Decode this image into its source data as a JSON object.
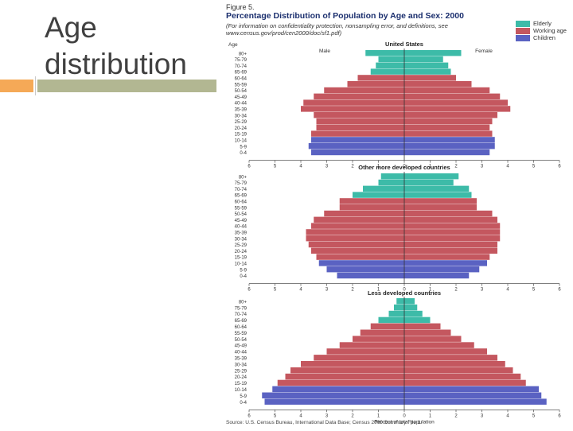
{
  "slide": {
    "title_line1": "Age",
    "title_line2": "distribution"
  },
  "figure": {
    "label": "Figure 5.",
    "title": "Percentage Distribution of Population by Age and Sex: 2000",
    "note": "(For information on confidentiality protection, nonsampling error, and definitions, see",
    "url": "www.census.gov/prod/cen2000/doc/sf1.pdf)",
    "source": "Source: U.S. Census Bureau, International Data Base; Census 2000 Summary File 1.",
    "x_label": "Percent of total population"
  },
  "colors": {
    "elderly": "#3dbba8",
    "working": "#c4575f",
    "children": "#5a62c2",
    "title": "#1b2f6e"
  },
  "chart_data": [
    {
      "type": "bar",
      "title": "United States",
      "ylabel": "Age",
      "left_label": "Male",
      "right_label": "Female",
      "xlim": [
        -6,
        6
      ],
      "xticks": [
        "6",
        "5",
        "4",
        "3",
        "2",
        "1",
        "0",
        "1",
        "2",
        "3",
        "4",
        "5",
        "6"
      ],
      "legend": [
        {
          "name": "Elderly",
          "group": "elderly"
        },
        {
          "name": "Working age",
          "group": "working"
        },
        {
          "name": "Children",
          "group": "children"
        }
      ],
      "categories": [
        "80+",
        "75-79",
        "70-74",
        "65-69",
        "60-64",
        "55-59",
        "50-54",
        "45-49",
        "40-44",
        "35-39",
        "30-34",
        "25-29",
        "20-24",
        "15-19",
        "10-14",
        "5-9",
        "0-4"
      ],
      "groups": [
        "elderly",
        "elderly",
        "elderly",
        "elderly",
        "working",
        "working",
        "working",
        "working",
        "working",
        "working",
        "working",
        "working",
        "working",
        "working",
        "children",
        "children",
        "children"
      ],
      "series": [
        {
          "name": "Male",
          "values": [
            1.5,
            1.0,
            1.1,
            1.3,
            1.8,
            2.2,
            3.1,
            3.5,
            3.9,
            4.0,
            3.5,
            3.4,
            3.4,
            3.6,
            3.6,
            3.7,
            3.6
          ]
        },
        {
          "name": "Female",
          "values": [
            2.2,
            1.5,
            1.7,
            1.8,
            2.0,
            2.6,
            3.3,
            3.7,
            4.0,
            4.1,
            3.6,
            3.4,
            3.3,
            3.4,
            3.5,
            3.5,
            3.3
          ]
        }
      ]
    },
    {
      "type": "bar",
      "title": "Other more developed countries",
      "xlim": [
        -6,
        6
      ],
      "xticks": [
        "6",
        "5",
        "4",
        "3",
        "2",
        "1",
        "0",
        "1",
        "2",
        "3",
        "4",
        "5",
        "6"
      ],
      "categories": [
        "80+",
        "75-79",
        "70-74",
        "65-69",
        "60-64",
        "55-59",
        "50-54",
        "45-49",
        "40-44",
        "35-39",
        "30-34",
        "25-29",
        "20-24",
        "15-19",
        "10-14",
        "5-9",
        "0-4"
      ],
      "groups": [
        "elderly",
        "elderly",
        "elderly",
        "elderly",
        "working",
        "working",
        "working",
        "working",
        "working",
        "working",
        "working",
        "working",
        "working",
        "working",
        "children",
        "children",
        "children"
      ],
      "series": [
        {
          "name": "Male",
          "values": [
            0.9,
            1.0,
            1.6,
            2.0,
            2.5,
            2.5,
            3.1,
            3.5,
            3.6,
            3.8,
            3.8,
            3.7,
            3.6,
            3.4,
            3.3,
            3.0,
            2.6
          ]
        },
        {
          "name": "Female",
          "values": [
            2.1,
            1.9,
            2.5,
            2.6,
            2.8,
            2.8,
            3.4,
            3.6,
            3.7,
            3.7,
            3.7,
            3.6,
            3.6,
            3.3,
            3.2,
            2.9,
            2.5
          ]
        }
      ]
    },
    {
      "type": "bar",
      "title": "Less developed countries",
      "xlim": [
        -6,
        6
      ],
      "xticks": [
        "6",
        "5",
        "4",
        "3",
        "2",
        "1",
        "0",
        "1",
        "2",
        "3",
        "4",
        "5",
        "6"
      ],
      "categories": [
        "80+",
        "75-79",
        "70-74",
        "65-69",
        "60-64",
        "55-59",
        "50-54",
        "45-49",
        "40-44",
        "35-39",
        "30-34",
        "25-29",
        "20-24",
        "15-19",
        "10-14",
        "5-9",
        "0-4"
      ],
      "groups": [
        "elderly",
        "elderly",
        "elderly",
        "elderly",
        "working",
        "working",
        "working",
        "working",
        "working",
        "working",
        "working",
        "working",
        "working",
        "working",
        "children",
        "children",
        "children"
      ],
      "series": [
        {
          "name": "Male",
          "values": [
            0.3,
            0.4,
            0.6,
            1.0,
            1.3,
            1.7,
            2.0,
            2.5,
            3.0,
            3.5,
            4.0,
            4.4,
            4.6,
            4.9,
            5.1,
            5.5,
            5.4
          ]
        },
        {
          "name": "Female",
          "values": [
            0.4,
            0.5,
            0.7,
            1.0,
            1.4,
            1.8,
            2.2,
            2.7,
            3.2,
            3.6,
            3.9,
            4.2,
            4.5,
            4.7,
            5.2,
            5.3,
            5.5
          ]
        }
      ]
    }
  ]
}
